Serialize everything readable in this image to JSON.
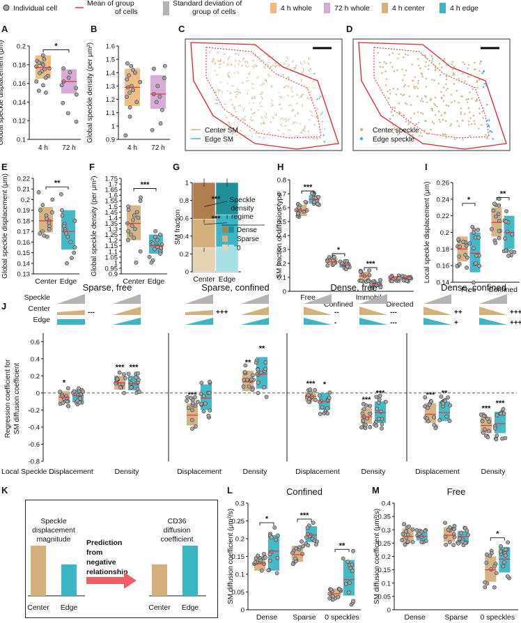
{
  "legend": {
    "individual_cell": "Individual cell",
    "mean_line1": "Mean of group",
    "mean_line2": "of cells",
    "sd_line1": "Standard deviation of",
    "sd_line2": "group of cells",
    "items": [
      "4 h whole",
      "72 h whole",
      "4 h center",
      "4 h edge"
    ]
  },
  "colors": {
    "center": "#d4b07c",
    "edge": "#3ab6c6",
    "h72": "#d5a8d5",
    "h4whole": "#f0bb7a",
    "mean": "#e8363f",
    "sd_gray": "#b3b3b3",
    "dot": "#a6a6a6",
    "center_dark": "#b07e4e",
    "edge_dark": "#1f8f9a",
    "center_light": "#e6d3b2",
    "edge_light": "#a7dfe6"
  },
  "panel_letters": [
    "A",
    "B",
    "C",
    "D",
    "E",
    "F",
    "G",
    "H",
    "I",
    "J",
    "K",
    "L",
    "M"
  ],
  "images": {
    "C": {
      "legend": [
        "Center SM",
        "Edge SM"
      ]
    },
    "D": {
      "legend": [
        "Center speckle",
        "Edge speckle"
      ]
    }
  },
  "chart_data": [
    {
      "id": "A",
      "type": "box_dot",
      "ylabel": "Global speckle displacement (μm)",
      "ylim": [
        0.1,
        0.2
      ],
      "yticks": [
        "0.1",
        "0.12",
        "0.14",
        "0.16",
        "0.18",
        "0.2"
      ],
      "categories": [
        "4 h",
        "72 h"
      ],
      "groups": [
        {
          "mean": 0.177,
          "sd_lo": 0.165,
          "sd_hi": 0.19,
          "color": "h4whole",
          "points": [
            0.19,
            0.186,
            0.184,
            0.182,
            0.181,
            0.18,
            0.178,
            0.176,
            0.175,
            0.173,
            0.171,
            0.168,
            0.166,
            0.162,
            0.158,
            0.152,
            0.15
          ]
        },
        {
          "mean": 0.162,
          "sd_lo": 0.149,
          "sd_hi": 0.175,
          "color": "h72",
          "points": [
            0.176,
            0.172,
            0.166,
            0.162,
            0.158,
            0.155,
            0.148,
            0.139,
            0.128,
            0.119
          ]
        }
      ],
      "sig": [
        {
          "label": "*",
          "from": 0,
          "to": 1,
          "y": 0.193
        }
      ]
    },
    {
      "id": "B",
      "type": "box_dot",
      "ylabel": "Global speckle density (per μm²)",
      "ylim": [
        0.9,
        1.6
      ],
      "yticks": [
        "0.9",
        "1",
        "1.1",
        "1.2",
        "1.3",
        "1.4",
        "1.5",
        "1.6"
      ],
      "categories": [
        "4 h",
        "72 h"
      ],
      "groups": [
        {
          "mean": 1.29,
          "sd_lo": 1.15,
          "sd_hi": 1.43,
          "color": "h4whole",
          "points": [
            1.47,
            1.45,
            1.42,
            1.4,
            1.38,
            1.35,
            1.33,
            1.3,
            1.29,
            1.27,
            1.25,
            1.22,
            1.18,
            1.14,
            1.07,
            0.93
          ]
        },
        {
          "mean": 1.24,
          "sd_lo": 1.13,
          "sd_hi": 1.38,
          "color": "h72",
          "points": [
            1.45,
            1.43,
            1.36,
            1.3,
            1.24,
            1.22,
            1.18,
            1.12,
            1.02,
            0.97
          ]
        }
      ],
      "sig": []
    },
    {
      "id": "E",
      "type": "box_dot",
      "ylabel": "Global speckle displacement (μm)",
      "ylim": [
        0.13,
        0.22
      ],
      "yticks": [
        "0.13",
        "0.14",
        "0.15",
        "0.16",
        "0.17",
        "0.18",
        "0.19",
        "0.2",
        "0.21",
        "0.22"
      ],
      "categories": [
        "Center",
        "Edge"
      ],
      "groups": [
        {
          "mean": 0.18,
          "sd_lo": 0.169,
          "sd_hi": 0.193,
          "color": "center",
          "points": [
            0.207,
            0.2,
            0.195,
            0.19,
            0.188,
            0.185,
            0.182,
            0.18,
            0.178,
            0.175,
            0.172,
            0.17,
            0.168,
            0.166,
            0.165
          ]
        },
        {
          "mean": 0.17,
          "sd_lo": 0.153,
          "sd_hi": 0.19,
          "color": "edge",
          "points": [
            0.205,
            0.19,
            0.185,
            0.18,
            0.177,
            0.175,
            0.172,
            0.17,
            0.168,
            0.165,
            0.16,
            0.155,
            0.15,
            0.145,
            0.14
          ]
        }
      ],
      "sig": [
        {
          "label": "**",
          "from": 0,
          "to": 1,
          "y": 0.212
        }
      ]
    },
    {
      "id": "F",
      "type": "box_dot",
      "ylabel": "Global speckle density (per μm²)",
      "ylim": [
        0.9,
        1.75
      ],
      "yticks": [
        "0.9",
        "0.95",
        "1",
        "1.05",
        "1.1",
        "1.15",
        "1.2",
        "1.25",
        "1.3",
        "1.35",
        "1.4",
        "1.45",
        "1.5",
        "1.55",
        "1.6",
        "1.65",
        "1.7",
        "1.75"
      ],
      "categories": [
        "Center",
        "Edge"
      ],
      "groups": [
        {
          "mean": 1.35,
          "sd_lo": 1.2,
          "sd_hi": 1.51,
          "color": "center",
          "points": [
            1.58,
            1.55,
            1.5,
            1.47,
            1.45,
            1.42,
            1.4,
            1.38,
            1.35,
            1.33,
            1.3,
            1.28,
            1.25,
            1.22,
            1.2,
            1.1,
            1.0
          ]
        },
        {
          "mean": 1.15,
          "sd_lo": 1.08,
          "sd_hi": 1.25,
          "color": "edge",
          "points": [
            1.28,
            1.25,
            1.23,
            1.2,
            1.18,
            1.17,
            1.16,
            1.15,
            1.14,
            1.13,
            1.12,
            1.1,
            1.08,
            1.05,
            1.02,
            1.0
          ]
        }
      ],
      "sig": [
        {
          "label": "***",
          "from": 0,
          "to": 1,
          "y": 1.66
        }
      ]
    },
    {
      "id": "G",
      "type": "stacked_bar",
      "ylabel": "SM fraction",
      "ylim": [
        0,
        1
      ],
      "yticks": [
        "0",
        "0.2",
        "0.4",
        "0.6",
        "0.8",
        "1"
      ],
      "categories": [
        "Center",
        "Edge"
      ],
      "stacks": [
        {
          "name": "0",
          "values": [
            0.27,
            0.28
          ]
        },
        {
          "name": "Sparse",
          "values": [
            0.32,
            0.36
          ]
        },
        {
          "name": "Dense",
          "values": [
            0.41,
            0.36
          ]
        }
      ],
      "sig": [
        "***",
        "***"
      ],
      "legend_title": [
        "Speckle",
        "density",
        "regime"
      ],
      "legend": [
        "Dense",
        "Sparse",
        "0"
      ]
    },
    {
      "id": "H",
      "type": "box_dot",
      "ylabel": "SM fraction of diffusion type",
      "ylim": [
        0,
        0.8
      ],
      "yticks": [
        "0",
        "0.1",
        "0.2",
        "0.3",
        "0.4",
        "0.5",
        "0.6",
        "0.7",
        "0.8"
      ],
      "categories": [
        "Free",
        "Confined",
        "Immobile",
        "Directed"
      ],
      "groups": [
        {
          "cat": 0,
          "mean": 0.58,
          "sd_lo": 0.54,
          "sd_hi": 0.62,
          "color": "center"
        },
        {
          "cat": 0,
          "mean": 0.66,
          "sd_lo": 0.63,
          "sd_hi": 0.69,
          "color": "edge"
        },
        {
          "cat": 1,
          "mean": 0.21,
          "sd_lo": 0.19,
          "sd_hi": 0.24,
          "color": "center"
        },
        {
          "cat": 1,
          "mean": 0.19,
          "sd_lo": 0.17,
          "sd_hi": 0.21,
          "color": "edge"
        },
        {
          "cat": 2,
          "mean": 0.11,
          "sd_lo": 0.08,
          "sd_hi": 0.14,
          "color": "center"
        },
        {
          "cat": 2,
          "mean": 0.05,
          "sd_lo": 0.03,
          "sd_hi": 0.07,
          "color": "edge"
        },
        {
          "cat": 3,
          "mean": 0.1,
          "sd_lo": 0.08,
          "sd_hi": 0.11,
          "color": "center"
        },
        {
          "cat": 3,
          "mean": 0.1,
          "sd_lo": 0.08,
          "sd_hi": 0.11,
          "color": "edge"
        }
      ],
      "sig": [
        {
          "label": "***",
          "cat": 0,
          "y": 0.72
        },
        {
          "label": "*",
          "cat": 1,
          "y": 0.27
        },
        {
          "label": "***",
          "cat": 2,
          "y": 0.17
        }
      ]
    },
    {
      "id": "I",
      "type": "box_dot",
      "ylabel": "Local speckle displacement (μm)",
      "ylim": [
        0.14,
        0.26
      ],
      "yticks": [
        "0.14",
        "0.16",
        "0.18",
        "0.2",
        "0.22",
        "0.24",
        "0.26"
      ],
      "categories": [
        "Free",
        "Confined"
      ],
      "groups": [
        {
          "cat": 0,
          "mean": 0.18,
          "sd_lo": 0.165,
          "sd_hi": 0.195,
          "color": "center"
        },
        {
          "cat": 0,
          "mean": 0.175,
          "sd_lo": 0.152,
          "sd_hi": 0.2,
          "color": "edge"
        },
        {
          "cat": 1,
          "mean": 0.212,
          "sd_lo": 0.195,
          "sd_hi": 0.23,
          "color": "center"
        },
        {
          "cat": 1,
          "mean": 0.2,
          "sd_lo": 0.18,
          "sd_hi": 0.22,
          "color": "edge"
        }
      ],
      "sig": [
        {
          "label": "*",
          "cat": 0,
          "y": 0.235
        },
        {
          "label": "**",
          "cat": 1,
          "y": 0.242
        }
      ]
    },
    {
      "id": "J",
      "type": "box_dot_multi",
      "ylabel": "Regression coefficient for SM diffusion coefficient",
      "ylim": [
        -0.8,
        0.7
      ],
      "yticks": [
        "0.6",
        "0.4",
        "0.2",
        "0",
        "-0.2",
        "-0.4",
        "-0.6",
        "-0.8"
      ],
      "row_labels": [
        "Speckle",
        "Center",
        "Edge"
      ],
      "xlabel": "Local Speckle",
      "subpanels": [
        {
          "title": "Sparse, free",
          "categories": [
            "Displacement",
            "Density"
          ],
          "marks": [
            "---",
            ""
          ],
          "groups": [
            {
              "mean": -0.05,
              "sd_lo": -0.12,
              "sd_hi": 0.02,
              "sig": "*"
            },
            {
              "mean": -0.03,
              "sd_lo": -0.11,
              "sd_hi": 0.04,
              "sig": ""
            },
            {
              "mean": 0.12,
              "sd_lo": 0.04,
              "sd_hi": 0.2,
              "sig": "***"
            },
            {
              "mean": 0.11,
              "sd_lo": 0.03,
              "sd_hi": 0.2,
              "sig": "***"
            }
          ]
        },
        {
          "title": "Sparse, confined",
          "categories": [
            "Displacement",
            "Density"
          ],
          "marks": [
            "+++",
            ""
          ],
          "groups": [
            {
              "mean": -0.26,
              "sd_lo": -0.38,
              "sd_hi": -0.12,
              "sig": "***"
            },
            {
              "mean": -0.06,
              "sd_lo": -0.2,
              "sd_hi": 0.1,
              "sig": ""
            },
            {
              "mean": 0.13,
              "sd_lo": 0.02,
              "sd_hi": 0.26,
              "sig": "**"
            },
            {
              "mean": 0.22,
              "sd_lo": 0.05,
              "sd_hi": 0.42,
              "sig": "**"
            }
          ]
        },
        {
          "title": "Dense, free",
          "categories": [
            "Displacement",
            "Density"
          ],
          "marks": [
            "--",
            "---"
          ],
          "groups": [
            {
              "mean": -0.04,
              "sd_lo": -0.1,
              "sd_hi": 0.01,
              "sig": "***"
            },
            {
              "mean": -0.1,
              "sd_lo": -0.2,
              "sd_hi": 0.0,
              "sig": "*"
            },
            {
              "mean": -0.28,
              "sd_lo": -0.36,
              "sd_hi": -0.18,
              "sig": "***"
            },
            {
              "mean": -0.23,
              "sd_lo": -0.35,
              "sd_hi": -0.1,
              "sig": "***"
            }
          ]
        },
        {
          "title": "Dense, confined",
          "categories": [
            "Displacement",
            "Density"
          ],
          "marks": [
            "++",
            "+++"
          ],
          "groups": [
            {
              "mean": -0.25,
              "sd_lo": -0.35,
              "sd_hi": -0.12,
              "sig": "***"
            },
            {
              "mean": -0.23,
              "sd_lo": -0.33,
              "sd_hi": -0.1,
              "sig": "**"
            },
            {
              "mean": -0.38,
              "sd_lo": -0.47,
              "sd_hi": -0.28,
              "sig": "***"
            },
            {
              "mean": -0.36,
              "sd_lo": -0.47,
              "sd_hi": -0.22,
              "sig": "***"
            }
          ]
        }
      ],
      "edge_marks": [
        "",
        "",
        "-",
        "---",
        "+",
        "+++"
      ]
    },
    {
      "id": "K",
      "type": "schematic",
      "left_title": [
        "Speckle",
        "displacement",
        "magnitude"
      ],
      "arrow_text": [
        "Prediction",
        "from",
        "negative",
        "relationship"
      ],
      "right_title": [
        "CD36",
        "diffusion",
        "coefficient"
      ],
      "left_values": [
        0.8,
        0.5
      ],
      "right_values": [
        0.5,
        0.8
      ],
      "categories": [
        "Center",
        "Edge"
      ]
    },
    {
      "id": "L",
      "type": "box_dot",
      "title": "Confined",
      "ylabel": "SM diffusion coefficient (μm²/s)",
      "ylim": [
        0,
        0.3
      ],
      "yticks": [
        "0",
        "0.05",
        "0.1",
        "0.15",
        "0.2",
        "0.25",
        "0.3"
      ],
      "categories": [
        "Dense",
        "Sparse",
        "0 speckles"
      ],
      "groups": [
        {
          "cat": 0,
          "mean": 0.13,
          "sd_lo": 0.11,
          "sd_hi": 0.15,
          "color": "center"
        },
        {
          "cat": 0,
          "mean": 0.165,
          "sd_lo": 0.11,
          "sd_hi": 0.21,
          "color": "edge"
        },
        {
          "cat": 1,
          "mean": 0.155,
          "sd_lo": 0.135,
          "sd_hi": 0.18,
          "color": "center"
        },
        {
          "cat": 1,
          "mean": 0.21,
          "sd_lo": 0.19,
          "sd_hi": 0.235,
          "color": "edge"
        },
        {
          "cat": 2,
          "mean": 0.045,
          "sd_lo": 0.035,
          "sd_hi": 0.06,
          "color": "center"
        },
        {
          "cat": 2,
          "mean": 0.085,
          "sd_lo": 0.04,
          "sd_hi": 0.14,
          "color": "edge"
        }
      ],
      "sig": [
        {
          "label": "*",
          "cat": 0,
          "y": 0.245
        },
        {
          "label": "***",
          "cat": 1,
          "y": 0.255
        },
        {
          "label": "**",
          "cat": 2,
          "y": 0.17
        }
      ]
    },
    {
      "id": "M",
      "type": "box_dot",
      "title": "Free",
      "ylabel": "SM diffusion coefficient (μm²/s)",
      "ylim": [
        0,
        0.4
      ],
      "yticks": [
        "0",
        "0.05",
        "0.1",
        "0.15",
        "0.2",
        "0.25",
        "0.3",
        "0.35",
        "0.4"
      ],
      "categories": [
        "Dense",
        "Sparse",
        "0 speckles"
      ],
      "groups": [
        {
          "cat": 0,
          "mean": 0.275,
          "sd_lo": 0.25,
          "sd_hi": 0.305,
          "color": "center"
        },
        {
          "cat": 0,
          "mean": 0.275,
          "sd_lo": 0.26,
          "sd_hi": 0.29,
          "color": "edge"
        },
        {
          "cat": 1,
          "mean": 0.28,
          "sd_lo": 0.255,
          "sd_hi": 0.31,
          "color": "center"
        },
        {
          "cat": 1,
          "mean": 0.275,
          "sd_lo": 0.25,
          "sd_hi": 0.295,
          "color": "edge"
        },
        {
          "cat": 2,
          "mean": 0.15,
          "sd_lo": 0.105,
          "sd_hi": 0.2,
          "color": "center"
        },
        {
          "cat": 2,
          "mean": 0.19,
          "sd_lo": 0.14,
          "sd_hi": 0.235,
          "color": "edge"
        }
      ],
      "sig": [
        {
          "label": "*",
          "cat": 2,
          "y": 0.27
        }
      ]
    }
  ]
}
